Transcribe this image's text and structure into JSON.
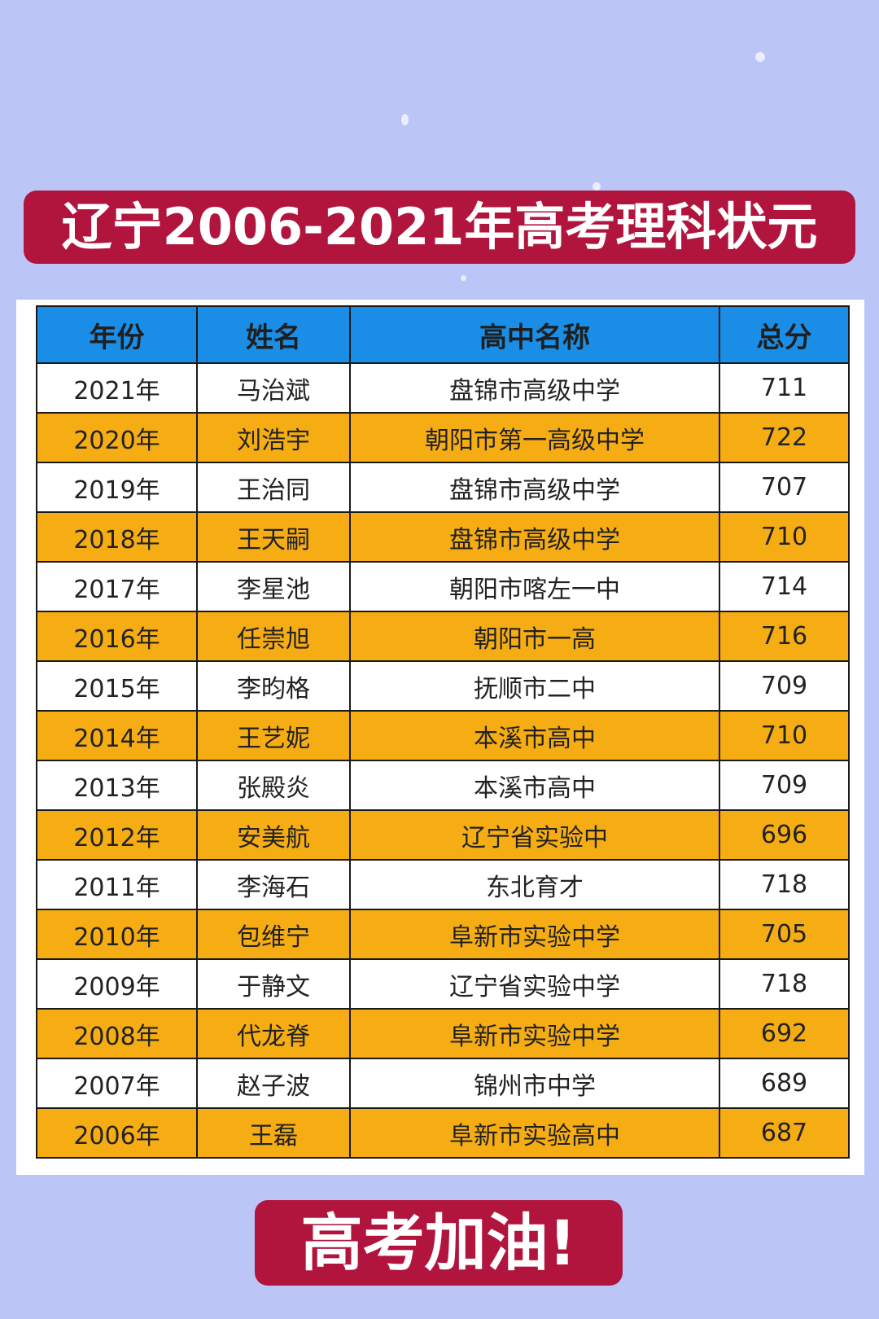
{
  "title": "辽宁2006-2021年高考理科状元",
  "footer": "高考加油!",
  "colors": {
    "background": "#bcc6f6",
    "banner": "#b1153d",
    "header": "#1a8ee6",
    "alt_row": "#f6ad14"
  },
  "table": {
    "headers": [
      "年份",
      "姓名",
      "高中名称",
      "总分"
    ],
    "rows": [
      [
        "2021年",
        "马治斌",
        "盘锦市高级中学",
        "711"
      ],
      [
        "2020年",
        "刘浩宇",
        "朝阳市第一高级中学",
        "722"
      ],
      [
        "2019年",
        "王治同",
        "盘锦市高级中学",
        "707"
      ],
      [
        "2018年",
        "王天嗣",
        "盘锦市高级中学",
        "710"
      ],
      [
        "2017年",
        "李星池",
        "朝阳市喀左一中",
        "714"
      ],
      [
        "2016年",
        "任崇旭",
        "朝阳市一高",
        "716"
      ],
      [
        "2015年",
        "李昀格",
        "抚顺市二中",
        "709"
      ],
      [
        "2014年",
        "王艺妮",
        "本溪市高中",
        "710"
      ],
      [
        "2013年",
        "张殿炎",
        "本溪市高中",
        "709"
      ],
      [
        "2012年",
        "安美航",
        "辽宁省实验中",
        "696"
      ],
      [
        "2011年",
        "李海石",
        "东北育才",
        "718"
      ],
      [
        "2010年",
        "包维宁",
        "阜新市实验中学",
        "705"
      ],
      [
        "2009年",
        "于静文",
        "辽宁省实验中学",
        "718"
      ],
      [
        "2008年",
        "代龙脊",
        "阜新市实验中学",
        "692"
      ],
      [
        "2007年",
        "赵子波",
        "锦州市中学",
        "689"
      ],
      [
        "2006年",
        "王磊",
        "阜新市实验高中",
        "687"
      ]
    ]
  }
}
